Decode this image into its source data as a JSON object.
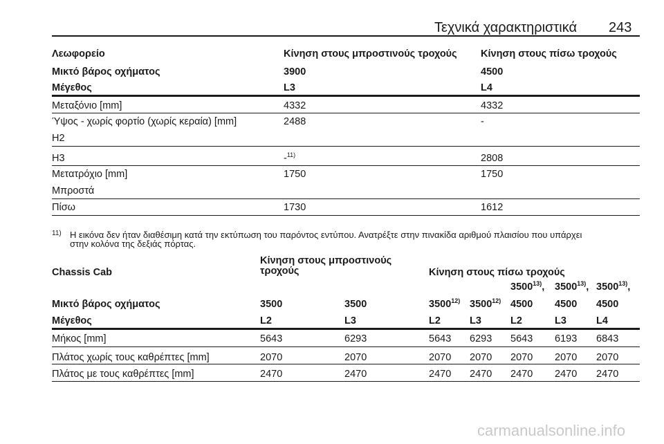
{
  "header": {
    "title": "Τεχνικά χαρακτηριστικά",
    "page_number": "243"
  },
  "table1": {
    "col_headers": [
      "Λεωφορείο",
      "Κίνηση στους μπροστινούς τροχούς",
      "Κίνηση στους πίσω τροχούς"
    ],
    "weight_row": {
      "label": "Μικτό βάρος οχήματος",
      "values": [
        "3900",
        "4500"
      ]
    },
    "size_row": {
      "label": "Μέγεθος",
      "values": [
        "L3",
        "L4"
      ]
    },
    "rows": [
      {
        "label": "Μεταξόνιο [mm]",
        "values": [
          "4332",
          "4332"
        ]
      },
      {
        "label": "Ύψος - χωρίς φορτίο (χωρίς κεραία) [mm]",
        "sublabel": "H2",
        "values": [
          "2488",
          "-"
        ]
      },
      {
        "label": "H3",
        "values": [
          "-",
          "2808"
        ],
        "note": "11)"
      },
      {
        "label": "Μετατρόχιο [mm]",
        "sublabel": "Μπροστά",
        "values": [
          "1750",
          "1750"
        ]
      },
      {
        "label": "Πίσω",
        "values": [
          "1730",
          "1612"
        ]
      }
    ]
  },
  "footnote": {
    "marker": "11)",
    "line1": "Η εικόνα δεν ήταν διαθέσιμη κατά την εκτύπωση του παρόντος εντύπου. Ανατρέξτε στην πινακίδα αριθμού πλαισίου που υπάρχει",
    "line2": "στην κολόνα της δεξιάς πόρτας."
  },
  "table2": {
    "title": "Chassis Cab",
    "front_header_line1": "Κίνηση στους μπροστινούς",
    "front_header_line2": "τροχούς",
    "rear_header": "Κίνηση στους πίσω τροχούς",
    "weight_label": "Μικτό βάρος οχήματος",
    "weights": [
      {
        "top": "",
        "value": "3500",
        "sup": ""
      },
      {
        "top": "",
        "value": "3500",
        "sup": ""
      },
      {
        "top": "",
        "value": "3500",
        "sup": "12)"
      },
      {
        "top": "",
        "value": "3500",
        "sup": "12)"
      },
      {
        "top": "3500",
        "top_sup": "13)",
        "value": "4500"
      },
      {
        "top": "3500",
        "top_sup": "13)",
        "value": "4500"
      },
      {
        "top": "3500",
        "top_sup": "13)",
        "value": "4500"
      }
    ],
    "size_label": "Μέγεθος",
    "sizes": [
      "L2",
      "L3",
      "L2",
      "L3",
      "L2",
      "L3",
      "L4"
    ],
    "rows": [
      {
        "label": "Μήκος [mm]",
        "values": [
          "5643",
          "6293",
          "5643",
          "6293",
          "5643",
          "6193",
          "6843"
        ]
      },
      {
        "label": "Πλάτος χωρίς τους καθρέπτες [mm]",
        "values": [
          "2070",
          "2070",
          "2070",
          "2070",
          "2070",
          "2070",
          "2070"
        ]
      },
      {
        "label": "Πλάτος με τους καθρέπτες [mm]",
        "values": [
          "2470",
          "2470",
          "2470",
          "2470",
          "2470",
          "2470",
          "2470"
        ]
      }
    ]
  },
  "watermark": "carmanualsonline.info"
}
